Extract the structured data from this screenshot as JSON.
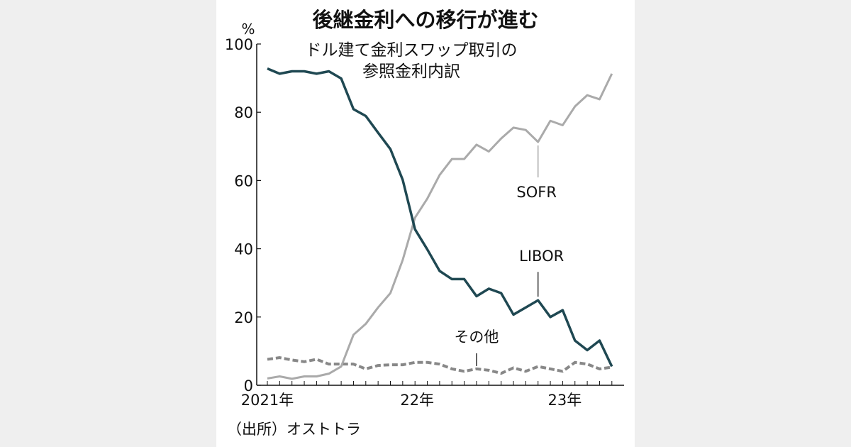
{
  "chart_data": {
    "type": "line",
    "title": "後継金利への移行が進む",
    "subtitle": [
      "ドル建て金利スワップ取引の",
      "参照金利内訳"
    ],
    "ylabel": "%",
    "ylim": [
      0,
      100
    ],
    "yticks": [
      0,
      20,
      40,
      60,
      80,
      100
    ],
    "x_count": 29,
    "x_tick_labels": [
      {
        "index": 0,
        "label": "2021年"
      },
      {
        "index": 12,
        "label": "22年"
      },
      {
        "index": 24,
        "label": "23年"
      }
    ],
    "series": [
      {
        "name": "LIBOR",
        "color": "#1f4852",
        "style": "solid",
        "values": [
          92.8,
          91.3,
          92,
          92,
          91.3,
          92,
          89.9,
          80.9,
          78.9,
          74,
          69.2,
          60.2,
          45.7,
          39.8,
          33.5,
          31.1,
          31.1,
          26.1,
          28.3,
          27,
          20.7,
          22.8,
          24.9,
          20,
          22,
          13.1,
          10.3,
          13.1,
          5.5
        ]
      },
      {
        "name": "SOFR",
        "color": "#aaaaaa",
        "style": "solid",
        "values": [
          2,
          2.6,
          1.9,
          2.6,
          2.6,
          3.4,
          5.5,
          14.8,
          18,
          22.8,
          27,
          36.7,
          49.1,
          54.7,
          61.6,
          66.3,
          66.3,
          70.5,
          68.5,
          72.3,
          75.5,
          74.8,
          71.3,
          77.5,
          76.2,
          81.7,
          85,
          83.8,
          91.3
        ]
      },
      {
        "name": "その他",
        "color": "#888888",
        "style": "dashed",
        "values": [
          7.6,
          8.1,
          7.4,
          6.9,
          7.6,
          6.2,
          6.2,
          6.2,
          4.8,
          5.8,
          6,
          6,
          6.7,
          6.7,
          6.2,
          4.8,
          4.1,
          4.8,
          4.4,
          3.5,
          5.1,
          4.1,
          5.5,
          4.8,
          4.1,
          6.7,
          6.2,
          4.8,
          5.3
        ]
      }
    ],
    "annotations": [
      {
        "text": "SOFR",
        "series": "SOFR",
        "index": 22
      },
      {
        "text": "LIBOR",
        "series": "LIBOR",
        "index": 22
      },
      {
        "text": "その他",
        "series": "その他",
        "index": 17
      }
    ],
    "source": "（出所）オストトラ"
  }
}
